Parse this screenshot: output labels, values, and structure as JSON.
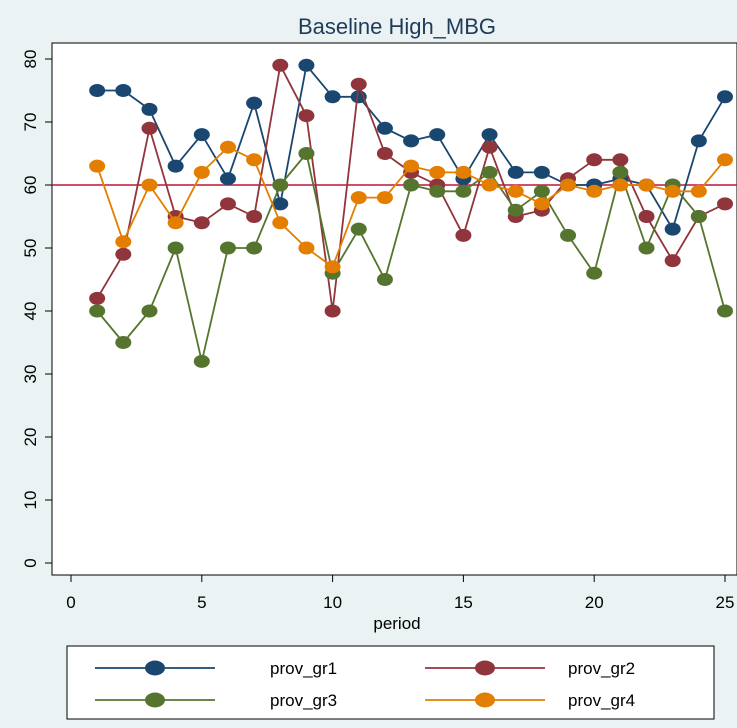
{
  "chart_data": {
    "type": "line",
    "title": "Baseline High_MBG",
    "xlabel": "period",
    "ylabel": "",
    "xlim": [
      0,
      25
    ],
    "ylim": [
      0,
      80
    ],
    "x_ticks": [
      0,
      5,
      10,
      15,
      20,
      25
    ],
    "y_ticks": [
      0,
      10,
      20,
      30,
      40,
      50,
      60,
      70,
      80
    ],
    "grid": false,
    "reference_line": {
      "y": 60,
      "color": "#c0143c"
    },
    "legend_position": "bottom",
    "x": [
      1,
      2,
      3,
      4,
      5,
      6,
      7,
      8,
      9,
      10,
      11,
      12,
      13,
      14,
      15,
      16,
      17,
      18,
      19,
      20,
      21,
      22,
      23,
      24,
      25
    ],
    "series": [
      {
        "name": "prov_gr1",
        "color": "#1a476f",
        "values": [
          75,
          75,
          72,
          63,
          68,
          61,
          73,
          57,
          79,
          74,
          74,
          69,
          67,
          68,
          61,
          68,
          62,
          62,
          60,
          60,
          61,
          60,
          53,
          67,
          74
        ]
      },
      {
        "name": "prov_gr2",
        "color": "#90353b",
        "values": [
          42,
          49,
          69,
          55,
          54,
          57,
          55,
          79,
          71,
          40,
          76,
          65,
          62,
          60,
          52,
          66,
          55,
          56,
          61,
          64,
          64,
          55,
          48,
          55,
          57
        ]
      },
      {
        "name": "prov_gr3",
        "color": "#55752f",
        "values": [
          40,
          35,
          40,
          50,
          32,
          50,
          50,
          60,
          65,
          46,
          53,
          45,
          60,
          59,
          59,
          62,
          56,
          59,
          52,
          46,
          62,
          50,
          60,
          55,
          40
        ]
      },
      {
        "name": "prov_gr4",
        "color": "#e37e00",
        "values": [
          63,
          51,
          60,
          54,
          62,
          66,
          64,
          54,
          50,
          47,
          58,
          58,
          63,
          62,
          62,
          60,
          59,
          57,
          60,
          59,
          60,
          60,
          59,
          59,
          64
        ]
      }
    ]
  }
}
